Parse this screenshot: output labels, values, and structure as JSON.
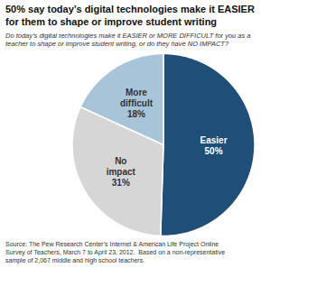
{
  "chart_data": {
    "type": "pie",
    "title": "50% say today’s digital technologies make it EASIER\nfor them to shape or improve student writing",
    "subtitle": "Do today’s digital technologies make it EASIER or MORE DIFFICULT for you as a\nteacher to shape or improve student writing, or do they have NO IMPACT?",
    "source": "Source: The Pew Research Center’s Internet & American Life Project Online\nSurvey of Teachers, March 7 to April 23, 2012.  Based on a non-representative\nsample of 2,067 middle and high school teachers.",
    "categories": [
      "Easier",
      "No\nimpact",
      "More\ndifficult"
    ],
    "values": [
      50,
      31,
      18
    ],
    "value_labels": [
      "50%",
      "31%",
      "18%"
    ],
    "data_labels": true,
    "colors": [
      "#1f4e79",
      "#d6d6d6",
      "#a8c4d8"
    ]
  }
}
